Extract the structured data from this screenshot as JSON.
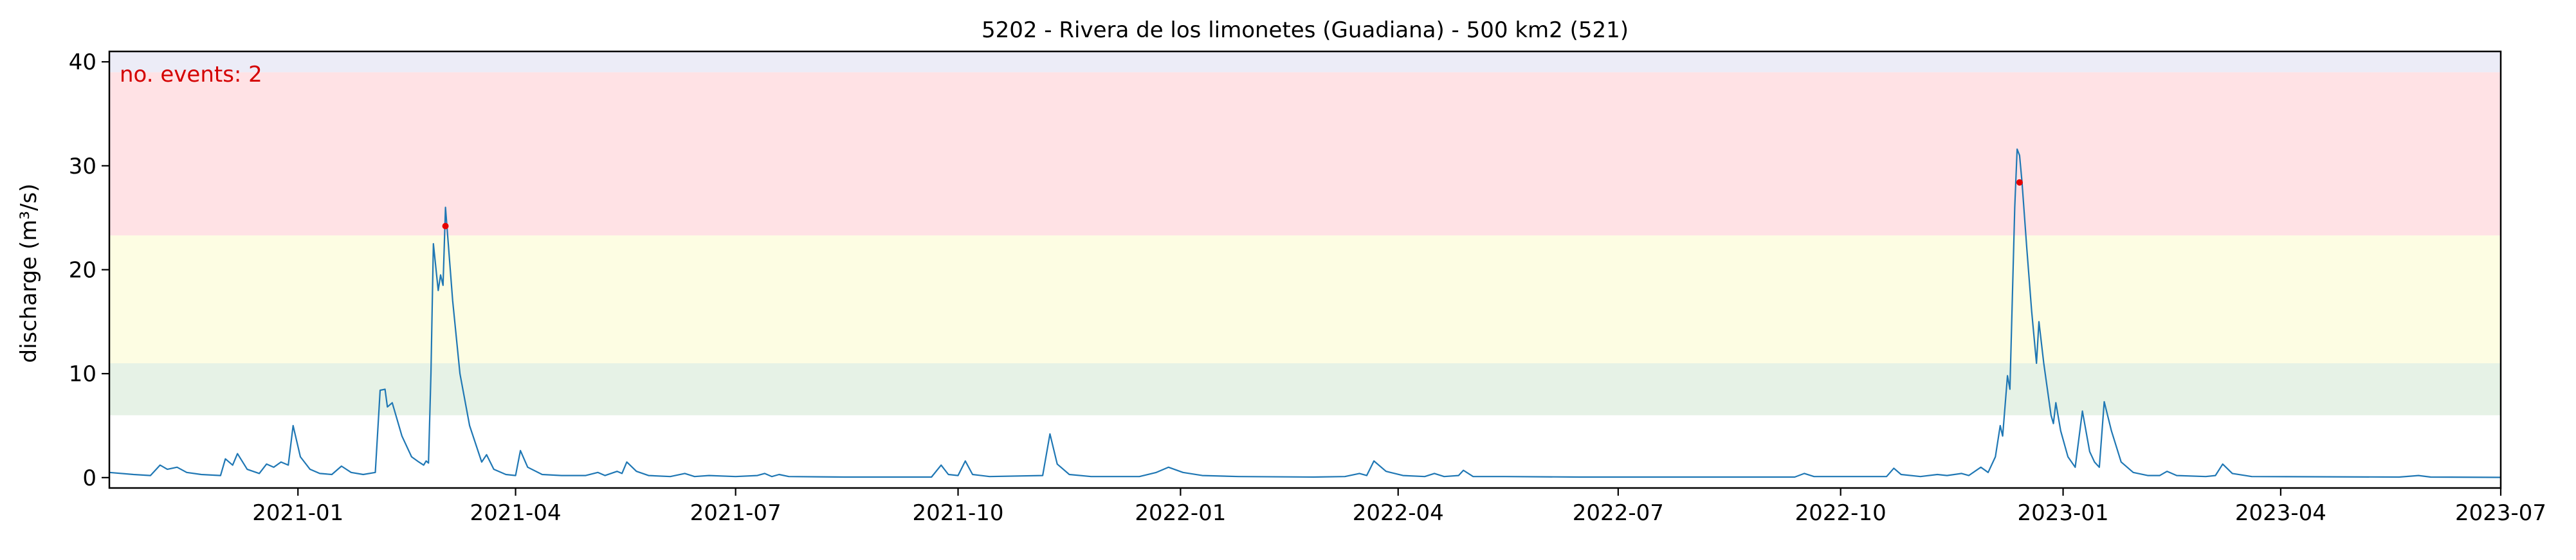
{
  "chart_data": {
    "type": "line",
    "title": "5202 - Rivera de los limonetes (Guadiana) - 500 km2 (521)",
    "xlabel": "",
    "ylabel": "discharge (m³/s)",
    "xlim": [
      "2020-10-15",
      "2023-07-01"
    ],
    "ylim": [
      -1,
      41
    ],
    "x_ticks": [
      "2021-01",
      "2021-04",
      "2021-07",
      "2021-10",
      "2022-01",
      "2022-04",
      "2022-07",
      "2022-10",
      "2023-01",
      "2023-04",
      "2023-07"
    ],
    "y_ticks": [
      0,
      10,
      20,
      30,
      40
    ],
    "grid": false,
    "annotation": {
      "text": "no. events: 2",
      "color": "#d40000"
    },
    "threshold_bands": [
      {
        "from": 6,
        "to": 11,
        "color": "#e6f2e6"
      },
      {
        "from": 11,
        "to": 23.3,
        "color": "#fdfde3"
      },
      {
        "from": 23.3,
        "to": 39,
        "color": "#ffe2e5"
      },
      {
        "from": 39,
        "to": 41,
        "color": "#ececf7"
      }
    ],
    "series": [
      {
        "color": "#1f77b4",
        "points": [
          [
            "2020-10-15",
            0.5
          ],
          [
            "2020-10-25",
            0.3
          ],
          [
            "2020-11-01",
            0.2
          ],
          [
            "2020-11-05",
            1.2
          ],
          [
            "2020-11-08",
            0.8
          ],
          [
            "2020-11-12",
            1.0
          ],
          [
            "2020-11-16",
            0.5
          ],
          [
            "2020-11-22",
            0.3
          ],
          [
            "2020-11-30",
            0.2
          ],
          [
            "2020-12-02",
            1.8
          ],
          [
            "2020-12-05",
            1.2
          ],
          [
            "2020-12-07",
            2.3
          ],
          [
            "2020-12-11",
            0.8
          ],
          [
            "2020-12-16",
            0.4
          ],
          [
            "2020-12-19",
            1.3
          ],
          [
            "2020-12-22",
            1.0
          ],
          [
            "2020-12-25",
            1.5
          ],
          [
            "2020-12-28",
            1.2
          ],
          [
            "2020-12-30",
            5.0
          ],
          [
            "2021-01-02",
            2.0
          ],
          [
            "2021-01-06",
            0.8
          ],
          [
            "2021-01-10",
            0.4
          ],
          [
            "2021-01-15",
            0.3
          ],
          [
            "2021-01-19",
            1.1
          ],
          [
            "2021-01-23",
            0.5
          ],
          [
            "2021-01-28",
            0.3
          ],
          [
            "2021-02-02",
            0.5
          ],
          [
            "2021-02-04",
            8.4
          ],
          [
            "2021-02-06",
            8.5
          ],
          [
            "2021-02-07",
            6.8
          ],
          [
            "2021-02-09",
            7.2
          ],
          [
            "2021-02-13",
            4.0
          ],
          [
            "2021-02-17",
            2.0
          ],
          [
            "2021-02-20",
            1.5
          ],
          [
            "2021-02-22",
            1.2
          ],
          [
            "2021-02-23",
            1.6
          ],
          [
            "2021-02-24",
            1.4
          ],
          [
            "2021-02-25",
            10.0
          ],
          [
            "2021-02-26",
            22.5
          ],
          [
            "2021-02-28",
            18.0
          ],
          [
            "2021-03-01",
            19.5
          ],
          [
            "2021-03-02",
            18.5
          ],
          [
            "2021-03-03",
            26.0
          ],
          [
            "2021-03-06",
            17.0
          ],
          [
            "2021-03-09",
            10.0
          ],
          [
            "2021-03-13",
            5.0
          ],
          [
            "2021-03-18",
            1.5
          ],
          [
            "2021-03-20",
            2.2
          ],
          [
            "2021-03-23",
            0.8
          ],
          [
            "2021-03-28",
            0.3
          ],
          [
            "2021-04-01",
            0.2
          ],
          [
            "2021-04-03",
            2.6
          ],
          [
            "2021-04-06",
            1.0
          ],
          [
            "2021-04-12",
            0.3
          ],
          [
            "2021-04-20",
            0.2
          ],
          [
            "2021-04-30",
            0.2
          ],
          [
            "2021-05-05",
            0.5
          ],
          [
            "2021-05-08",
            0.2
          ],
          [
            "2021-05-13",
            0.6
          ],
          [
            "2021-05-15",
            0.4
          ],
          [
            "2021-05-17",
            1.5
          ],
          [
            "2021-05-21",
            0.6
          ],
          [
            "2021-05-26",
            0.2
          ],
          [
            "2021-06-04",
            0.1
          ],
          [
            "2021-06-10",
            0.4
          ],
          [
            "2021-06-14",
            0.1
          ],
          [
            "2021-06-20",
            0.2
          ],
          [
            "2021-07-01",
            0.1
          ],
          [
            "2021-07-10",
            0.2
          ],
          [
            "2021-07-13",
            0.4
          ],
          [
            "2021-07-16",
            0.1
          ],
          [
            "2021-07-19",
            0.3
          ],
          [
            "2021-07-23",
            0.1
          ],
          [
            "2021-08-15",
            0.05
          ],
          [
            "2021-09-20",
            0.05
          ],
          [
            "2021-09-24",
            1.2
          ],
          [
            "2021-09-27",
            0.3
          ],
          [
            "2021-10-01",
            0.2
          ],
          [
            "2021-10-04",
            1.6
          ],
          [
            "2021-10-07",
            0.3
          ],
          [
            "2021-10-14",
            0.1
          ],
          [
            "2021-11-05",
            0.2
          ],
          [
            "2021-11-08",
            4.2
          ],
          [
            "2021-11-11",
            1.3
          ],
          [
            "2021-11-16",
            0.3
          ],
          [
            "2021-11-25",
            0.1
          ],
          [
            "2021-12-15",
            0.1
          ],
          [
            "2021-12-22",
            0.5
          ],
          [
            "2021-12-27",
            1.0
          ],
          [
            "2022-01-02",
            0.5
          ],
          [
            "2022-01-10",
            0.2
          ],
          [
            "2022-01-25",
            0.1
          ],
          [
            "2022-02-25",
            0.05
          ],
          [
            "2022-03-10",
            0.1
          ],
          [
            "2022-03-16",
            0.4
          ],
          [
            "2022-03-19",
            0.2
          ],
          [
            "2022-03-22",
            1.6
          ],
          [
            "2022-03-27",
            0.6
          ],
          [
            "2022-04-03",
            0.2
          ],
          [
            "2022-04-12",
            0.1
          ],
          [
            "2022-04-16",
            0.4
          ],
          [
            "2022-04-20",
            0.1
          ],
          [
            "2022-04-26",
            0.2
          ],
          [
            "2022-04-28",
            0.7
          ],
          [
            "2022-05-02",
            0.1
          ],
          [
            "2022-05-15",
            0.1
          ],
          [
            "2022-06-15",
            0.05
          ],
          [
            "2022-09-12",
            0.05
          ],
          [
            "2022-09-16",
            0.4
          ],
          [
            "2022-09-20",
            0.1
          ],
          [
            "2022-10-20",
            0.1
          ],
          [
            "2022-10-23",
            0.9
          ],
          [
            "2022-10-26",
            0.3
          ],
          [
            "2022-11-03",
            0.1
          ],
          [
            "2022-11-10",
            0.3
          ],
          [
            "2022-11-14",
            0.2
          ],
          [
            "2022-11-20",
            0.4
          ],
          [
            "2022-11-23",
            0.2
          ],
          [
            "2022-11-28",
            1.0
          ],
          [
            "2022-12-01",
            0.5
          ],
          [
            "2022-12-04",
            2.0
          ],
          [
            "2022-12-06",
            5.0
          ],
          [
            "2022-12-07",
            4.0
          ],
          [
            "2022-12-09",
            9.8
          ],
          [
            "2022-12-10",
            8.5
          ],
          [
            "2022-12-12",
            26.0
          ],
          [
            "2022-12-13",
            31.6
          ],
          [
            "2022-12-14",
            31.0
          ],
          [
            "2022-12-15",
            28.5
          ],
          [
            "2022-12-17",
            22.0
          ],
          [
            "2022-12-19",
            16.0
          ],
          [
            "2022-12-21",
            11.0
          ],
          [
            "2022-12-22",
            15.0
          ],
          [
            "2022-12-24",
            11.0
          ],
          [
            "2022-12-27",
            6.0
          ],
          [
            "2022-12-28",
            5.2
          ],
          [
            "2022-12-29",
            7.2
          ],
          [
            "2022-12-31",
            4.5
          ],
          [
            "2023-01-03",
            2.0
          ],
          [
            "2023-01-06",
            1.0
          ],
          [
            "2023-01-09",
            6.4
          ],
          [
            "2023-01-12",
            2.5
          ],
          [
            "2023-01-14",
            1.5
          ],
          [
            "2023-01-16",
            1.0
          ],
          [
            "2023-01-18",
            7.3
          ],
          [
            "2023-01-21",
            4.5
          ],
          [
            "2023-01-25",
            1.5
          ],
          [
            "2023-01-30",
            0.5
          ],
          [
            "2023-02-05",
            0.2
          ],
          [
            "2023-02-10",
            0.2
          ],
          [
            "2023-02-13",
            0.6
          ],
          [
            "2023-02-17",
            0.2
          ],
          [
            "2023-03-01",
            0.1
          ],
          [
            "2023-03-05",
            0.2
          ],
          [
            "2023-03-08",
            1.3
          ],
          [
            "2023-03-12",
            0.4
          ],
          [
            "2023-03-20",
            0.1
          ],
          [
            "2023-05-20",
            0.05
          ],
          [
            "2023-05-28",
            0.2
          ],
          [
            "2023-06-02",
            0.05
          ],
          [
            "2023-07-01",
            0.02
          ]
        ]
      }
    ],
    "events": [
      {
        "x": "2021-03-03",
        "y": 24.2
      },
      {
        "x": "2022-12-14",
        "y": 28.4
      }
    ]
  }
}
